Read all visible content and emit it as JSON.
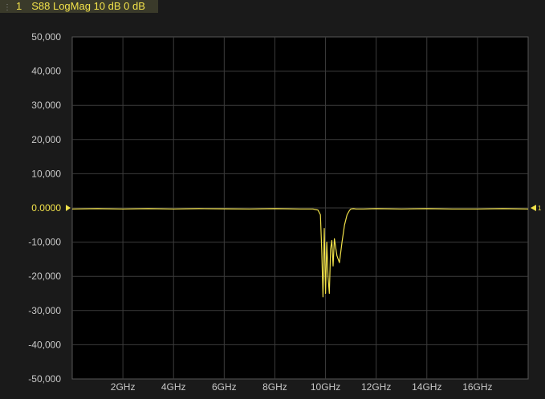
{
  "trace": {
    "index": "1",
    "label": "S88 LogMag 10 dB 0 dB",
    "color": "#f2e24a"
  },
  "chart_data": {
    "type": "line",
    "title": "",
    "xlabel": "",
    "ylabel": "",
    "xlim": [
      0,
      18
    ],
    "ylim": [
      -50000,
      50000
    ],
    "x_unit": "GHz",
    "grid": true,
    "reference_value": "0.0000",
    "reference_marker": "1",
    "y_ticks": [
      {
        "value": 50000,
        "label": "50,000"
      },
      {
        "value": 40000,
        "label": "40,000"
      },
      {
        "value": 30000,
        "label": "30,000"
      },
      {
        "value": 20000,
        "label": "20,000"
      },
      {
        "value": 10000,
        "label": "10,000"
      },
      {
        "value": 0,
        "label": "0.0000"
      },
      {
        "value": -10000,
        "label": "-10,000"
      },
      {
        "value": -20000,
        "label": "-20,000"
      },
      {
        "value": -30000,
        "label": "-30,000"
      },
      {
        "value": -40000,
        "label": "-40,000"
      },
      {
        "value": -50000,
        "label": "-50,000"
      }
    ],
    "x_ticks": [
      {
        "value": 2,
        "label": "2GHz"
      },
      {
        "value": 4,
        "label": "4GHz"
      },
      {
        "value": 6,
        "label": "6GHz"
      },
      {
        "value": 8,
        "label": "8GHz"
      },
      {
        "value": 10,
        "label": "10GHz"
      },
      {
        "value": 12,
        "label": "12GHz"
      },
      {
        "value": 14,
        "label": "14GHz"
      },
      {
        "value": 16,
        "label": "16GHz"
      }
    ],
    "series": [
      {
        "color": "#f2e24a",
        "x": [
          0,
          1,
          2,
          3,
          4,
          5,
          6,
          7,
          8,
          9,
          9.5,
          9.7,
          9.8,
          9.85,
          9.9,
          9.95,
          10.0,
          10.05,
          10.1,
          10.15,
          10.2,
          10.25,
          10.3,
          10.35,
          10.45,
          10.55,
          10.65,
          10.75,
          10.85,
          10.95,
          11.0,
          11.1,
          11.2,
          11.5,
          12,
          13,
          14,
          15,
          16,
          17,
          18
        ],
        "y": [
          -300,
          -200,
          -300,
          -200,
          -300,
          -200,
          -250,
          -300,
          -200,
          -300,
          -300,
          -600,
          -2000,
          -12000,
          -26000,
          -6000,
          -25000,
          -10000,
          -20000,
          -25000,
          -12000,
          -9500,
          -17000,
          -9000,
          -14000,
          -16000,
          -10000,
          -5000,
          -2000,
          -700,
          -300,
          -200,
          -300,
          -300,
          -200,
          -300,
          -200,
          -300,
          -300,
          -200,
          -300
        ]
      }
    ]
  }
}
